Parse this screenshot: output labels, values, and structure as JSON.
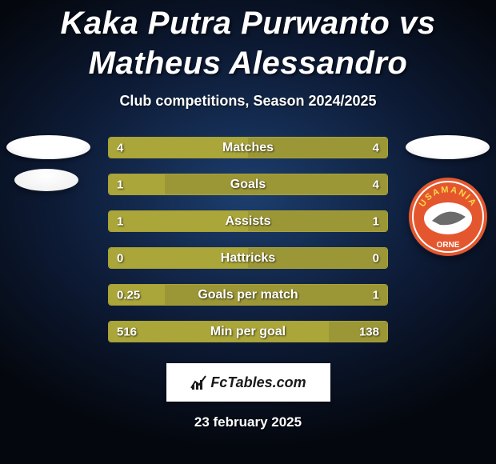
{
  "background": {
    "base_color": "#0d1b36",
    "radial_center": "#1c3e6e",
    "vignette": "#04070d"
  },
  "header": {
    "title": "Kaka Putra Purwanto vs Matheus Alessandro",
    "title_color": "#ffffff",
    "title_fontsize": 40,
    "subtitle": "Club competitions, Season 2024/2025",
    "subtitle_color": "#ffffff",
    "subtitle_fontsize": 18
  },
  "players": {
    "left": {
      "badge_color": "#ffffff",
      "badge_outline": "#dddddd",
      "team_badge_color": "#f2f2f2"
    },
    "right": {
      "badge_color": "#ffffff",
      "badge_outline": "#dddddd",
      "team_badge_bg": "#e4572e",
      "team_badge_ring": "#ffffff",
      "team_badge_text": "USAMANIA",
      "team_badge_text_color": "#f9d84a",
      "team_badge_bottom_text": "ORNE"
    }
  },
  "stats": {
    "bar_border_color": "#a7a137",
    "left_color": "#aba63a",
    "right_color": "#9c9736",
    "label_color": "#ffffff",
    "label_fontsize": 15,
    "center_fontsize": 16,
    "rows": [
      {
        "left": "4",
        "label": "Matches",
        "right": "4",
        "left_pct": 50,
        "right_pct": 50
      },
      {
        "left": "1",
        "label": "Goals",
        "right": "4",
        "left_pct": 20,
        "right_pct": 80
      },
      {
        "left": "1",
        "label": "Assists",
        "right": "1",
        "left_pct": 50,
        "right_pct": 50
      },
      {
        "left": "0",
        "label": "Hattricks",
        "right": "0",
        "left_pct": 50,
        "right_pct": 50
      },
      {
        "left": "0.25",
        "label": "Goals per match",
        "right": "1",
        "left_pct": 20,
        "right_pct": 80
      },
      {
        "left": "516",
        "label": "Min per goal",
        "right": "138",
        "left_pct": 78.9,
        "right_pct": 21.1
      }
    ]
  },
  "footer": {
    "brand": "FcTables.com",
    "date": "23 february 2025",
    "date_color": "#ffffff",
    "date_fontsize": 17
  }
}
